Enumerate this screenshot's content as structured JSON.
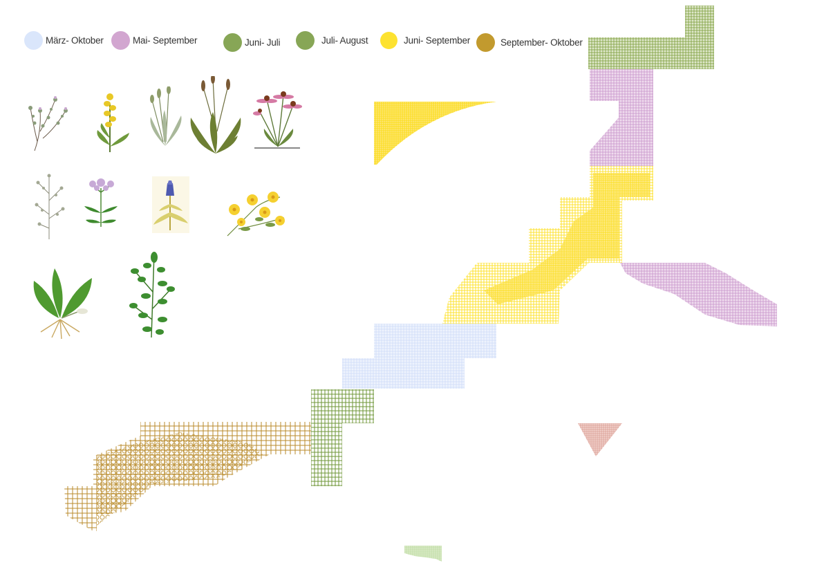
{
  "legend": [
    {
      "label": "März- Oktober",
      "color": "#dae6fb"
    },
    {
      "label": "Mai- September",
      "color": "#d2a6d0"
    },
    {
      "label": "Juni- Juli",
      "color": "#87a656"
    },
    {
      "label": "Juli- August",
      "color": "#87a656"
    },
    {
      "label": "Juni- September",
      "color": "#fde230"
    },
    {
      "label": "September- Oktober",
      "color": "#c29a2e"
    }
  ],
  "plants": [
    {
      "name": "thyme"
    },
    {
      "name": "yellow-spike-flower"
    },
    {
      "name": "narrow-leaf-plantain"
    },
    {
      "name": "ribwort-plantain"
    },
    {
      "name": "echinacea"
    },
    {
      "name": "wormwood"
    },
    {
      "name": "valerian"
    },
    {
      "name": "gentian"
    },
    {
      "name": "st-johns-wort"
    },
    {
      "name": "broadleaf-plantain"
    },
    {
      "name": "leafy-herb"
    }
  ],
  "colors": {
    "marz_oktober": "#d6e4fc",
    "mai_september": "#c996cc",
    "juni_juli": "#8caa55",
    "juli_august": "#7d9e3c",
    "juni_september": "#fde020",
    "september_oktober": "#b88a2a",
    "salmon": "#d89a90",
    "light_green": "#b8d89a"
  }
}
